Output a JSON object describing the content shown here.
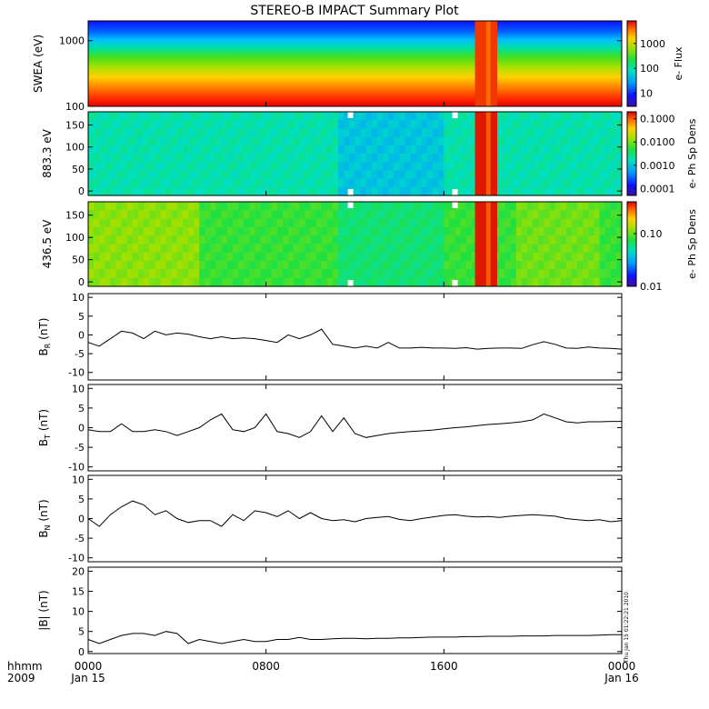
{
  "title": "STEREO-B IMPACT Summary Plot",
  "time_axis": {
    "ticks": [
      {
        "hour": 0,
        "label": "0000",
        "sublabel": "Jan 15"
      },
      {
        "hour": 8,
        "label": "0800",
        "sublabel": ""
      },
      {
        "hour": 16,
        "label": "1600",
        "sublabel": ""
      },
      {
        "hour": 24,
        "label": "0000",
        "sublabel": "Jan 16"
      }
    ],
    "corner_label_1": "hhmm",
    "corner_label_2": "2009",
    "range_hours": [
      0,
      24
    ]
  },
  "timestamp_note": "Thu Jan 15 01:22:21 2010",
  "colors": {
    "line": "#000000",
    "gap": "#ffffff"
  },
  "spectrograms": [
    {
      "ylabel": "SWEA (eV)",
      "scale": "log",
      "ylim": [
        100,
        2000
      ],
      "yticks": [
        {
          "v": 1000,
          "label": "1000"
        },
        {
          "v": 100,
          "label": "100"
        }
      ],
      "colorbar": {
        "label": "e- Flux",
        "scale": "log",
        "range": [
          3,
          8000
        ],
        "ticks": [
          {
            "v": 1000,
            "label": "1000"
          },
          {
            "v": 100,
            "label": "100"
          },
          {
            "v": 10,
            "label": "10"
          }
        ]
      }
    },
    {
      "ylabel": "883.3 eV",
      "scale": "linear",
      "ylim": [
        -10,
        180
      ],
      "yticks": [
        {
          "v": 0,
          "label": "0"
        },
        {
          "v": 50,
          "label": "50"
        },
        {
          "v": 100,
          "label": "100"
        },
        {
          "v": 150,
          "label": "150"
        }
      ],
      "colorbar": {
        "label": "e- Ph Sp Dens",
        "scale": "log",
        "range": [
          5e-05,
          0.2
        ],
        "ticks": [
          {
            "v": 0.1,
            "label": "0.1000"
          },
          {
            "v": 0.01,
            "label": "0.0100"
          },
          {
            "v": 0.001,
            "label": "0.0010"
          },
          {
            "v": 0.0001,
            "label": "0.0001"
          }
        ]
      }
    },
    {
      "ylabel": "436.5 eV",
      "scale": "linear",
      "ylim": [
        -10,
        180
      ],
      "yticks": [
        {
          "v": 0,
          "label": "0"
        },
        {
          "v": 50,
          "label": "50"
        },
        {
          "v": 100,
          "label": "100"
        },
        {
          "v": 150,
          "label": "150"
        }
      ],
      "colorbar": {
        "label": "e- Ph Sp Dens",
        "scale": "log",
        "range": [
          0.01,
          0.4
        ],
        "ticks": [
          {
            "v": 0.1,
            "label": "0.10"
          },
          {
            "v": 0.01,
            "label": "0.01"
          }
        ]
      }
    }
  ],
  "chart_data": {
    "type": "line",
    "title": "STEREO-B IMPACT Summary Plot",
    "x_unit": "hours since 0000 Jan 15 2009",
    "time_hours": [
      0,
      0.5,
      1,
      1.5,
      2,
      2.5,
      3,
      3.5,
      4,
      4.5,
      5,
      5.5,
      6,
      6.5,
      7,
      7.5,
      8,
      8.5,
      9,
      9.5,
      10,
      10.5,
      11,
      11.5,
      12,
      12.5,
      13,
      13.5,
      14,
      14.5,
      15,
      15.5,
      16,
      16.5,
      17,
      17.5,
      18,
      18.5,
      19,
      19.5,
      20,
      20.5,
      21,
      21.5,
      22,
      22.5,
      23,
      23.5,
      24
    ],
    "series": [
      {
        "name": "BR (nT)",
        "ylim": [
          -12,
          11
        ],
        "yticks": [
          -10,
          -5,
          0,
          5,
          10
        ],
        "values": [
          -2,
          -3,
          -1,
          1,
          0.5,
          -1,
          1,
          0,
          0.5,
          0.2,
          -0.5,
          -1,
          -0.5,
          -1,
          -0.8,
          -1,
          -1.5,
          -2,
          0,
          -1,
          0,
          1.5,
          -2.5,
          -3,
          -3.5,
          -3,
          -3.5,
          -2,
          -3.5,
          -3.5,
          -3.3,
          -3.5,
          -3.5,
          -3.6,
          -3.4,
          -3.8,
          -3.6,
          -3.5,
          -3.5,
          -3.6,
          -2.6,
          -1.8,
          -2.5,
          -3.5,
          -3.6,
          -3.2,
          -3.5,
          -3.6,
          -3.8
        ]
      },
      {
        "name": "BT (nT)",
        "ylim": [
          -11,
          11
        ],
        "yticks": [
          -10,
          -5,
          0,
          5,
          10
        ],
        "values": [
          -0.5,
          -1,
          -1,
          1,
          -1,
          -1,
          -0.5,
          -1,
          -2,
          -1,
          0,
          2,
          3.5,
          -0.5,
          -1,
          0,
          3.5,
          -1,
          -1.5,
          -2.5,
          -1,
          3,
          -1,
          2.5,
          -1.5,
          -2.5,
          -2,
          -1.5,
          -1.2,
          -1,
          -0.8,
          -0.6,
          -0.3,
          0,
          0.2,
          0.5,
          0.8,
          1,
          1.2,
          1.5,
          2,
          3.5,
          2.5,
          1.5,
          1.2,
          1.5,
          1.5,
          1.6,
          1.6
        ]
      },
      {
        "name": "BN (nT)",
        "ylim": [
          -11,
          11
        ],
        "yticks": [
          -10,
          -5,
          0,
          5,
          10
        ],
        "values": [
          0,
          -2,
          1,
          3,
          4.5,
          3.5,
          1,
          2,
          0,
          -1,
          -0.5,
          -0.5,
          -2,
          1,
          -0.5,
          2,
          1.5,
          0.5,
          2,
          0,
          1.5,
          0,
          -0.5,
          -0.3,
          -0.8,
          0,
          0.3,
          0.5,
          -0.2,
          -0.5,
          0,
          0.4,
          0.8,
          1,
          0.6,
          0.4,
          0.5,
          0.3,
          0.6,
          0.8,
          1,
          0.8,
          0.6,
          0,
          -0.3,
          -0.5,
          -0.3,
          -0.8,
          -0.5
        ]
      },
      {
        "name": "|B| (nT)",
        "ylim": [
          -0.5,
          21
        ],
        "yticks": [
          0,
          5,
          10,
          15,
          20
        ],
        "values": [
          3,
          2,
          3,
          4,
          4.5,
          4.5,
          4,
          5,
          4.5,
          2,
          3,
          2.5,
          2,
          2.5,
          3,
          2.5,
          2.5,
          3,
          3,
          3.5,
          3,
          3,
          3.2,
          3.3,
          3.3,
          3.2,
          3.3,
          3.3,
          3.4,
          3.4,
          3.5,
          3.6,
          3.6,
          3.6,
          3.7,
          3.7,
          3.8,
          3.8,
          3.8,
          3.9,
          3.9,
          3.9,
          4,
          4,
          4,
          4,
          4.1,
          4.2,
          4.2
        ]
      }
    ]
  }
}
